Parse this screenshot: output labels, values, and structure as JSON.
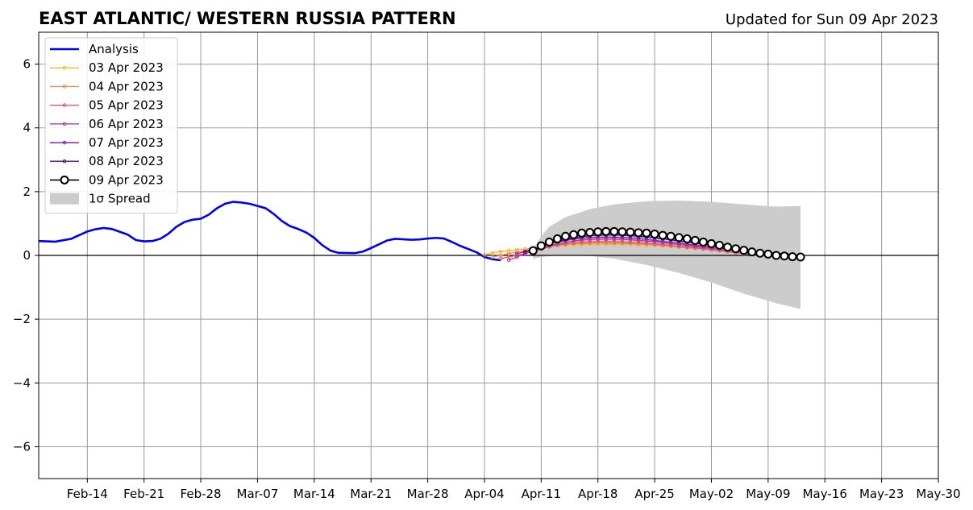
{
  "chart_data": {
    "type": "line",
    "title": "EAST ATLANTIC/ WESTERN RUSSIA PATTERN",
    "subtitle": "Updated for Sun 09 Apr 2023",
    "xlabel": "",
    "ylabel": "",
    "xlim": [
      "2023-02-08",
      "2023-05-30"
    ],
    "ylim": [
      -7,
      7
    ],
    "grid": true,
    "legend_position": "top-left",
    "x_ticks": [
      "Feb-14",
      "Feb-21",
      "Feb-28",
      "Mar-07",
      "Mar-14",
      "Mar-21",
      "Mar-28",
      "Apr-04",
      "Apr-11",
      "Apr-18",
      "Apr-25",
      "May-02",
      "May-09",
      "May-16",
      "May-23",
      "May-30"
    ],
    "x_tick_dates": [
      "2023-02-14",
      "2023-02-21",
      "2023-02-28",
      "2023-03-07",
      "2023-03-14",
      "2023-03-21",
      "2023-03-28",
      "2023-04-04",
      "2023-04-11",
      "2023-04-18",
      "2023-04-25",
      "2023-05-02",
      "2023-05-09",
      "2023-05-16",
      "2023-05-23",
      "2023-05-30"
    ],
    "y_ticks": [
      -6,
      -4,
      -2,
      0,
      2,
      4,
      6
    ],
    "y_tick_labels": [
      "−6",
      "−4",
      "−2",
      "0",
      "2",
      "4",
      "6"
    ],
    "analysis": {
      "name": "Analysis",
      "color": "#0000ee",
      "points": [
        [
          "2023-02-08",
          0.45
        ],
        [
          "2023-02-10",
          0.43
        ],
        [
          "2023-02-12",
          0.52
        ],
        [
          "2023-02-14",
          0.75
        ],
        [
          "2023-02-15",
          0.82
        ],
        [
          "2023-02-16",
          0.86
        ],
        [
          "2023-02-17",
          0.83
        ],
        [
          "2023-02-19",
          0.65
        ],
        [
          "2023-02-20",
          0.48
        ],
        [
          "2023-02-21",
          0.44
        ],
        [
          "2023-02-22",
          0.45
        ],
        [
          "2023-02-23",
          0.52
        ],
        [
          "2023-02-24",
          0.68
        ],
        [
          "2023-02-25",
          0.9
        ],
        [
          "2023-02-26",
          1.05
        ],
        [
          "2023-02-27",
          1.12
        ],
        [
          "2023-02-28",
          1.15
        ],
        [
          "2023-03-01",
          1.28
        ],
        [
          "2023-03-02",
          1.48
        ],
        [
          "2023-03-03",
          1.62
        ],
        [
          "2023-03-04",
          1.68
        ],
        [
          "2023-03-05",
          1.66
        ],
        [
          "2023-03-06",
          1.62
        ],
        [
          "2023-03-07",
          1.55
        ],
        [
          "2023-03-08",
          1.48
        ],
        [
          "2023-03-09",
          1.3
        ],
        [
          "2023-03-10",
          1.08
        ],
        [
          "2023-03-11",
          0.92
        ],
        [
          "2023-03-12",
          0.83
        ],
        [
          "2023-03-13",
          0.72
        ],
        [
          "2023-03-14",
          0.55
        ],
        [
          "2023-03-15",
          0.32
        ],
        [
          "2023-03-16",
          0.15
        ],
        [
          "2023-03-17",
          0.08
        ],
        [
          "2023-03-19",
          0.07
        ],
        [
          "2023-03-20",
          0.12
        ],
        [
          "2023-03-21",
          0.23
        ],
        [
          "2023-03-22",
          0.35
        ],
        [
          "2023-03-23",
          0.47
        ],
        [
          "2023-03-24",
          0.52
        ],
        [
          "2023-03-26",
          0.49
        ],
        [
          "2023-03-27",
          0.5
        ],
        [
          "2023-03-28",
          0.53
        ],
        [
          "2023-03-29",
          0.55
        ],
        [
          "2023-03-30",
          0.53
        ],
        [
          "2023-03-31",
          0.42
        ],
        [
          "2023-04-01",
          0.3
        ],
        [
          "2023-04-02",
          0.2
        ],
        [
          "2023-04-03",
          0.1
        ],
        [
          "2023-04-04",
          -0.05
        ],
        [
          "2023-04-05",
          -0.12
        ],
        [
          "2023-04-06",
          -0.15
        ]
      ]
    },
    "forecasts": [
      {
        "name": "03 Apr 2023",
        "color": "#f5b731",
        "start": "2023-04-04",
        "values": [
          0.02,
          0.08,
          0.12,
          0.15,
          0.18,
          0.2,
          0.23,
          0.26,
          0.29,
          0.31,
          0.32,
          0.33,
          0.34,
          0.35,
          0.35,
          0.35,
          0.35,
          0.35,
          0.35,
          0.34,
          0.33,
          0.32,
          0.3,
          0.28,
          0.26,
          0.24,
          0.22,
          0.2,
          0.18,
          0.16,
          0.13,
          0.1,
          0.07,
          0.04
        ]
      },
      {
        "name": "04 Apr 2023",
        "color": "#f08a45",
        "start": "2023-04-05",
        "values": [
          -0.05,
          0.0,
          0.06,
          0.1,
          0.15,
          0.2,
          0.25,
          0.3,
          0.33,
          0.35,
          0.37,
          0.38,
          0.39,
          0.39,
          0.39,
          0.38,
          0.38,
          0.37,
          0.36,
          0.35,
          0.33,
          0.31,
          0.29,
          0.26,
          0.24,
          0.22,
          0.2,
          0.18,
          0.15,
          0.12,
          0.09,
          0.06,
          0.03,
          0.0
        ]
      },
      {
        "name": "05 Apr 2023",
        "color": "#e05a6a",
        "start": "2023-04-06",
        "values": [
          -0.1,
          -0.05,
          0.0,
          0.06,
          0.12,
          0.2,
          0.27,
          0.32,
          0.36,
          0.39,
          0.41,
          0.42,
          0.43,
          0.43,
          0.43,
          0.42,
          0.41,
          0.4,
          0.38,
          0.36,
          0.34,
          0.31,
          0.28,
          0.26,
          0.24,
          0.21,
          0.18,
          0.15,
          0.12,
          0.09,
          0.06,
          0.03,
          0.0,
          -0.02
        ]
      },
      {
        "name": "06 Apr 2023",
        "color": "#b83a95",
        "start": "2023-04-07",
        "values": [
          -0.15,
          -0.05,
          0.05,
          0.14,
          0.22,
          0.3,
          0.36,
          0.41,
          0.45,
          0.48,
          0.5,
          0.51,
          0.51,
          0.51,
          0.5,
          0.49,
          0.47,
          0.45,
          0.43,
          0.4,
          0.37,
          0.34,
          0.31,
          0.28,
          0.25,
          0.22,
          0.19,
          0.16,
          0.13,
          0.1,
          0.07,
          0.04,
          0.02,
          0.0
        ]
      },
      {
        "name": "07 Apr 2023",
        "color": "#8a22b0",
        "start": "2023-04-08",
        "values": [
          0.05,
          0.12,
          0.2,
          0.28,
          0.36,
          0.42,
          0.47,
          0.51,
          0.54,
          0.56,
          0.57,
          0.57,
          0.57,
          0.56,
          0.55,
          0.53,
          0.5,
          0.47,
          0.44,
          0.41,
          0.38,
          0.35,
          0.32,
          0.29,
          0.26,
          0.23,
          0.2,
          0.17,
          0.14,
          0.11,
          0.08,
          0.06,
          0.04,
          0.03
        ]
      },
      {
        "name": "08 Apr 2023",
        "color": "#4a0a8c",
        "start": "2023-04-09",
        "values": [
          0.1,
          0.18,
          0.28,
          0.36,
          0.44,
          0.5,
          0.55,
          0.59,
          0.62,
          0.63,
          0.64,
          0.64,
          0.63,
          0.62,
          0.6,
          0.58,
          0.55,
          0.52,
          0.49,
          0.45,
          0.42,
          0.38,
          0.35,
          0.31,
          0.28,
          0.25,
          0.22,
          0.18,
          0.15,
          0.12,
          0.09,
          0.07,
          0.05,
          0.04
        ]
      },
      {
        "name": "09 Apr 2023",
        "color": "#000000",
        "start": "2023-04-10",
        "values": [
          0.15,
          0.3,
          0.42,
          0.52,
          0.6,
          0.65,
          0.7,
          0.72,
          0.74,
          0.75,
          0.75,
          0.74,
          0.73,
          0.71,
          0.7,
          0.67,
          0.63,
          0.6,
          0.56,
          0.52,
          0.47,
          0.42,
          0.37,
          0.32,
          0.26,
          0.21,
          0.16,
          0.11,
          0.07,
          0.04,
          0.0,
          -0.02,
          -0.04,
          -0.05
        ]
      }
    ],
    "spread": {
      "name": "1σ Spread",
      "color": "#cccccc",
      "points": [
        [
          "2023-04-10",
          -0.1,
          0.2
        ],
        [
          "2023-04-11",
          -0.05,
          0.6
        ],
        [
          "2023-04-12",
          -0.02,
          0.9
        ],
        [
          "2023-04-14",
          0.0,
          1.2
        ],
        [
          "2023-04-17",
          -0.02,
          1.45
        ],
        [
          "2023-04-20",
          -0.1,
          1.6
        ],
        [
          "2023-04-24",
          -0.3,
          1.7
        ],
        [
          "2023-04-28",
          -0.55,
          1.72
        ],
        [
          "2023-05-02",
          -0.85,
          1.68
        ],
        [
          "2023-05-06",
          -1.2,
          1.6
        ],
        [
          "2023-05-10",
          -1.5,
          1.53
        ],
        [
          "2023-05-13",
          -1.68,
          1.55
        ]
      ]
    }
  }
}
